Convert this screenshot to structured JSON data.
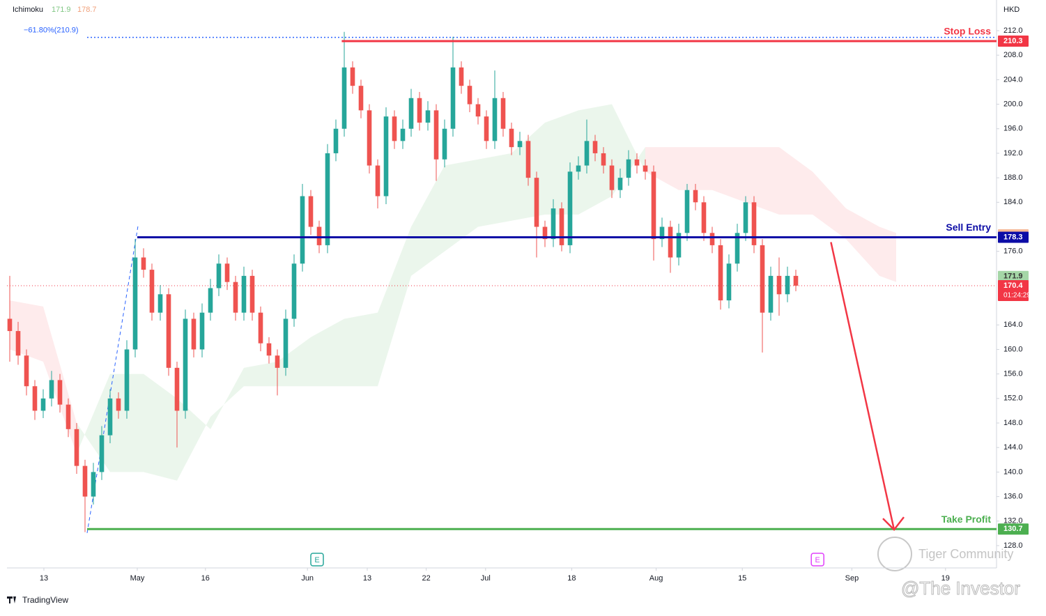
{
  "chart_data": {
    "type": "candlestick",
    "indicator": {
      "name": "Ichimoku",
      "values": [
        171.9,
        178.7
      ],
      "colors": [
        "#81c784",
        "#f0a07a"
      ]
    },
    "currency": "HKD",
    "xlim": [
      -0.333,
      118
    ],
    "ylim": [
      124.36,
      217
    ],
    "yticks": [
      {
        "value": 212,
        "label": "212.0"
      },
      {
        "value": 208,
        "label": "208.0"
      },
      {
        "value": 204,
        "label": "204.0"
      },
      {
        "value": 200,
        "label": "200.0"
      },
      {
        "value": 196,
        "label": "196.0"
      },
      {
        "value": 192,
        "label": "192.0"
      },
      {
        "value": 188,
        "label": "188.0"
      },
      {
        "value": 184,
        "label": "184.0"
      },
      {
        "value": 176,
        "label": "176.0"
      },
      {
        "value": 164,
        "label": "164.0"
      },
      {
        "value": 160,
        "label": "160.0"
      },
      {
        "value": 156,
        "label": "156.0"
      },
      {
        "value": 152,
        "label": "152.0"
      },
      {
        "value": 148,
        "label": "148.0"
      },
      {
        "value": 144,
        "label": "144.0"
      },
      {
        "value": 140,
        "label": "140.0"
      },
      {
        "value": 136,
        "label": "136.0"
      },
      {
        "value": 132,
        "label": "132.0"
      },
      {
        "value": 128,
        "label": "128.0"
      }
    ],
    "xticks": [
      {
        "value": 4.08,
        "label": "13"
      },
      {
        "value": 15.25,
        "label": "May"
      },
      {
        "value": 23.4,
        "label": "16"
      },
      {
        "value": 35.6,
        "label": "Jun"
      },
      {
        "value": 42.75,
        "label": "13"
      },
      {
        "value": 49.8,
        "label": "22"
      },
      {
        "value": 56.9,
        "label": "Jul"
      },
      {
        "value": 67.2,
        "label": "18"
      },
      {
        "value": 77.3,
        "label": "Aug"
      },
      {
        "value": 87.6,
        "label": "15"
      },
      {
        "value": 100.7,
        "label": "Sep"
      },
      {
        "value": 111.9,
        "label": "19"
      }
    ],
    "up_color": "#26a69a",
    "down_color": "#ef5350",
    "candles": [
      [
        165,
        172,
        158,
        163
      ],
      [
        163,
        164.5,
        157.5,
        159
      ],
      [
        159,
        160,
        152.5,
        154
      ],
      [
        154,
        155,
        148.5,
        150
      ],
      [
        150,
        153.5,
        148.8,
        152
      ],
      [
        152,
        156.5,
        150.7,
        155
      ],
      [
        155,
        156,
        149.7,
        151
      ],
      [
        151,
        152,
        145.7,
        147
      ],
      [
        147,
        148,
        139.7,
        141
      ],
      [
        141,
        142,
        130.2,
        136
      ],
      [
        136,
        141.5,
        134.7,
        140
      ],
      [
        140,
        147.5,
        138.7,
        146
      ],
      [
        146,
        153.5,
        144.7,
        152
      ],
      [
        152,
        153,
        148.7,
        150
      ],
      [
        150,
        161.5,
        148.7,
        160
      ],
      [
        160,
        178,
        158.7,
        175
      ],
      [
        175,
        176.5,
        171.7,
        173
      ],
      [
        173,
        174,
        164.7,
        166
      ],
      [
        166,
        170.5,
        164.7,
        169
      ],
      [
        169,
        170,
        155.7,
        157
      ],
      [
        157,
        158,
        144,
        150
      ],
      [
        150,
        166.5,
        148.7,
        165
      ],
      [
        165,
        166,
        158.7,
        160
      ],
      [
        160,
        167.5,
        158.7,
        166
      ],
      [
        166,
        171.5,
        164.7,
        170
      ],
      [
        170,
        175.5,
        168.7,
        174
      ],
      [
        174,
        175,
        169.7,
        171
      ],
      [
        171,
        172,
        164.7,
        166
      ],
      [
        166,
        173.5,
        164.7,
        172
      ],
      [
        172,
        173,
        164.7,
        166
      ],
      [
        166,
        167,
        159.7,
        161
      ],
      [
        161,
        162,
        157.7,
        159
      ],
      [
        159,
        160,
        152.5,
        157
      ],
      [
        157,
        166.5,
        155.7,
        165
      ],
      [
        165,
        175.5,
        163.7,
        174
      ],
      [
        174,
        187,
        172.7,
        185
      ],
      [
        185,
        186,
        178.7,
        180
      ],
      [
        180,
        181,
        175.7,
        177
      ],
      [
        177,
        193.5,
        175.7,
        192
      ],
      [
        192,
        197.5,
        190.7,
        196
      ],
      [
        196,
        211.8,
        194.7,
        206
      ],
      [
        206,
        207,
        201.7,
        203
      ],
      [
        203,
        204,
        197.7,
        199
      ],
      [
        199,
        200,
        188.7,
        190
      ],
      [
        190,
        191,
        183,
        185
      ],
      [
        185,
        199.5,
        183.7,
        198
      ],
      [
        198,
        199,
        192.7,
        194
      ],
      [
        194,
        197.5,
        192.7,
        196
      ],
      [
        196,
        202.5,
        194.7,
        201
      ],
      [
        201,
        202,
        195.7,
        197
      ],
      [
        197,
        200.5,
        195.7,
        199
      ],
      [
        199,
        200,
        187.5,
        191
      ],
      [
        191,
        197.5,
        189.7,
        196
      ],
      [
        196,
        211,
        194.7,
        206
      ],
      [
        206,
        207,
        201.7,
        203
      ],
      [
        203,
        204,
        198.7,
        200
      ],
      [
        200,
        201,
        196.7,
        198
      ],
      [
        198,
        199,
        192.7,
        194
      ],
      [
        194,
        205.5,
        192.7,
        201
      ],
      [
        201,
        202,
        194.7,
        196
      ],
      [
        196,
        197,
        191.7,
        193
      ],
      [
        193,
        195.5,
        191.7,
        194
      ],
      [
        194,
        195,
        186.7,
        188
      ],
      [
        188,
        189,
        175,
        180
      ],
      [
        180,
        181,
        176.7,
        178
      ],
      [
        178,
        184.5,
        176.7,
        183
      ],
      [
        183,
        184,
        176,
        177
      ],
      [
        177,
        190.5,
        175.7,
        189
      ],
      [
        189,
        191.5,
        187.7,
        190
      ],
      [
        190,
        197.5,
        188.7,
        194
      ],
      [
        194,
        195,
        190.7,
        192
      ],
      [
        192,
        193,
        188.7,
        190
      ],
      [
        190,
        191,
        184.7,
        186
      ],
      [
        186,
        189.5,
        184.7,
        188
      ],
      [
        188,
        192.5,
        186.7,
        191
      ],
      [
        191,
        192,
        188.7,
        190
      ],
      [
        190,
        191,
        187.7,
        189
      ],
      [
        189,
        190,
        174.5,
        178
      ],
      [
        178,
        181.5,
        176.7,
        180
      ],
      [
        180,
        181,
        172.5,
        175
      ],
      [
        175,
        180.5,
        173.7,
        179
      ],
      [
        179,
        187,
        177.7,
        186
      ],
      [
        186,
        187,
        182.7,
        184
      ],
      [
        184,
        185,
        177.7,
        179
      ],
      [
        179,
        180,
        175.7,
        177
      ],
      [
        177,
        178,
        166.5,
        168
      ],
      [
        168,
        175.5,
        166.7,
        174
      ],
      [
        174,
        180.5,
        172.7,
        179
      ],
      [
        179,
        185,
        177.7,
        184
      ],
      [
        184,
        185,
        175.7,
        177
      ],
      [
        177,
        178,
        159.5,
        166
      ],
      [
        166,
        173.5,
        164.7,
        172
      ],
      [
        172,
        175,
        165.5,
        169
      ],
      [
        169,
        173.5,
        167.7,
        172
      ],
      [
        172,
        173,
        169.5,
        170.4
      ]
    ],
    "cloud": {
      "x": [
        0,
        4,
        8,
        12,
        16,
        20,
        24,
        28,
        32,
        36,
        40,
        44,
        48,
        52,
        56,
        60,
        64,
        68,
        72,
        76,
        80,
        84,
        88,
        92,
        96,
        100,
        104,
        106
      ],
      "span_a": [
        160,
        158,
        143,
        156,
        156,
        152,
        147,
        157,
        158,
        162,
        165,
        166,
        180,
        190,
        191,
        192,
        197,
        199,
        200,
        189,
        186,
        186,
        184,
        182,
        182,
        178,
        172,
        171
      ],
      "span_b": [
        168,
        167,
        148,
        140,
        140,
        138.6,
        149,
        154,
        154,
        154,
        154,
        154,
        172,
        176,
        180,
        181,
        182,
        182,
        185,
        193,
        193,
        193,
        193,
        193,
        189,
        183,
        180,
        179
      ],
      "up_color": "rgba(76,175,80,0.11)",
      "down_color": "rgba(242,54,69,0.10)"
    },
    "fib": {
      "label": "−61.80%(210.9)",
      "value": 210.9,
      "start": 9.25,
      "color": "#2962ff"
    },
    "fib_trend": {
      "from": [
        9.25,
        130.05
      ],
      "to": [
        15.33,
        180.1
      ]
    },
    "levels": [
      {
        "name": "Stop Loss",
        "value": 210.3,
        "start": 39.7,
        "color": "#f23645"
      },
      {
        "name": "Sell Entry",
        "value": 178.3,
        "start": 15.25,
        "color": "#0c0ca6"
      },
      {
        "name": "Take Profit",
        "value": 130.7,
        "start": 9.25,
        "color": "#4caf50"
      }
    ],
    "arrow": {
      "from": [
        98.2,
        177.5
      ],
      "to": [
        105.75,
        130.6
      ],
      "color": "#f23645"
    },
    "last_price": {
      "value": 170.4,
      "countdown": "01:24:29",
      "color": "#f23645"
    },
    "earnings": [
      {
        "label": "E",
        "x": 36.75,
        "color": "#26a69a"
      },
      {
        "label": "E",
        "x": 96.6,
        "color": "#e040fb"
      }
    ],
    "branding": "TradingView",
    "watermark": [
      "Tiger Community",
      "@The Investor"
    ]
  }
}
